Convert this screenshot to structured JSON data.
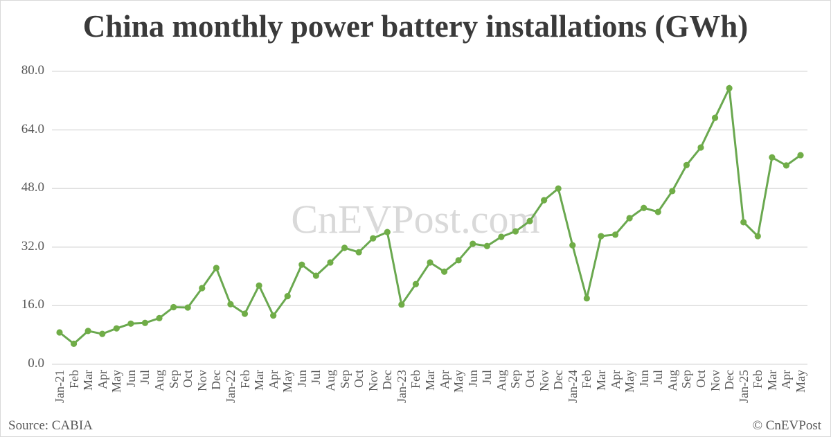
{
  "title": "China monthly power battery installations (GWh)",
  "watermark": "CnEVPost.com",
  "source": "Source: CABIA",
  "credit": "© CnEVPost",
  "colors": {
    "line": "#6aa84f",
    "marker": "#70ad47",
    "grid": "#d9d9d9",
    "text": "#595959",
    "title": "#3a3a3a"
  },
  "chart_data": {
    "type": "line",
    "title": "China monthly power battery installations (GWh)",
    "xlabel": "",
    "ylabel": "",
    "ylim": [
      0,
      80
    ],
    "yticks": [
      "0.0",
      "16.0",
      "32.0",
      "48.0",
      "64.0",
      "80.0"
    ],
    "grid": true,
    "legend": "none",
    "categories": [
      "Jan-21",
      "Feb",
      "Mar",
      "Apr",
      "May",
      "Jun",
      "Jul",
      "Aug",
      "Sep",
      "Oct",
      "Nov",
      "Dec",
      "Jan-22",
      "Feb",
      "Mar",
      "Apr",
      "May",
      "Jun",
      "Jul",
      "Aug",
      "Sep",
      "Oct",
      "Nov",
      "Dec",
      "Jan-23",
      "Feb",
      "Mar",
      "Apr",
      "May",
      "Jun",
      "Jul",
      "Aug",
      "Sep",
      "Oct",
      "Nov",
      "Dec",
      "Jan-24",
      "Feb",
      "Mar",
      "Apr",
      "May",
      "Jun",
      "Jul",
      "Aug",
      "Sep",
      "Oct",
      "Nov",
      "Dec",
      "Jan-25",
      "Feb",
      "Mar",
      "Apr",
      "May"
    ],
    "series": [
      {
        "name": "Power battery installations (GWh)",
        "values": [
          8.7,
          5.6,
          9.1,
          8.3,
          9.8,
          11.1,
          11.3,
          12.6,
          15.6,
          15.5,
          20.8,
          26.3,
          16.4,
          13.8,
          21.5,
          13.3,
          18.6,
          27.2,
          24.2,
          27.8,
          31.8,
          30.6,
          34.4,
          36.1,
          16.3,
          21.9,
          27.8,
          25.3,
          28.4,
          32.9,
          32.3,
          34.8,
          36.3,
          39.1,
          44.8,
          48.0,
          32.5,
          18.0,
          35.0,
          35.4,
          39.9,
          42.7,
          41.6,
          47.3,
          54.4,
          59.2,
          67.3,
          75.4,
          38.8,
          35.0,
          56.5,
          54.3,
          57.1
        ]
      }
    ],
    "annotations": [
      "CnEVPost.com (watermark)",
      "Source: CABIA",
      "© CnEVPost"
    ]
  }
}
